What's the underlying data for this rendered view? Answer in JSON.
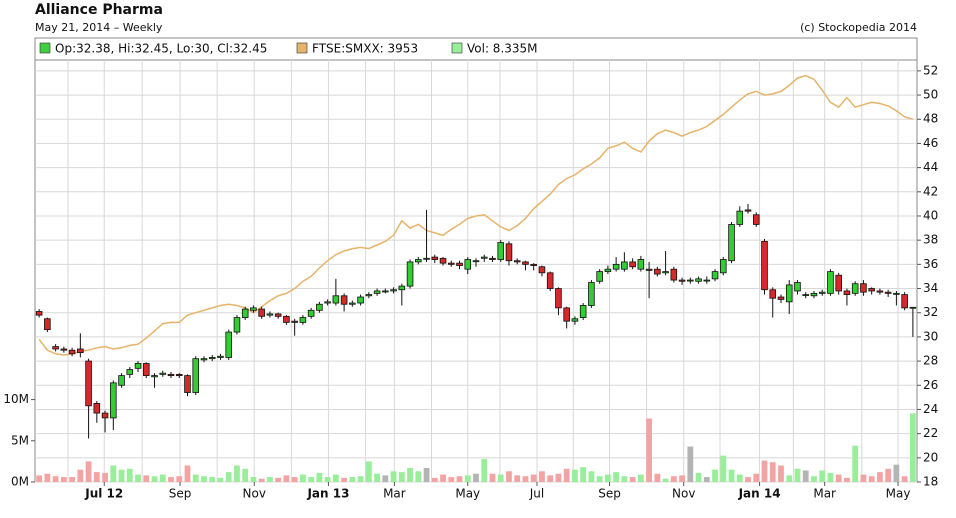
{
  "chart_data": {
    "type": "candlestick",
    "title": "Alliance Pharma",
    "subtitle": "May 21, 2014 – Weekly",
    "copyright": "(c) Stockopedia 2014",
    "xlim": [
      -0.5,
      106.5
    ],
    "xticks": [
      {
        "value": 7.9,
        "label": "Jul 12"
      },
      {
        "value": 17.1,
        "label": "Sep"
      },
      {
        "value": 26.1,
        "label": "Nov"
      },
      {
        "value": 35.1,
        "label": "Jan 13"
      },
      {
        "value": 43.1,
        "label": "Mar"
      },
      {
        "value": 52.0,
        "label": "May"
      },
      {
        "value": 60.4,
        "label": "Jul"
      },
      {
        "value": 69.2,
        "label": "Sep"
      },
      {
        "value": 78.2,
        "label": "Nov"
      },
      {
        "value": 87.4,
        "label": "Jan 14"
      },
      {
        "value": 95.3,
        "label": "Mar"
      },
      {
        "value": 104.2,
        "label": "May"
      }
    ],
    "xticks_minor": [
      3.5,
      12.5,
      21.6,
      30.6,
      39.6,
      47.6,
      55.9,
      64.8,
      73.7,
      82.6,
      91.5,
      99.8
    ],
    "ylim": [
      18,
      52.9
    ],
    "yticks": [
      18,
      20,
      22,
      24,
      26,
      28,
      30,
      32,
      34,
      36,
      38,
      40,
      42,
      44,
      46,
      48,
      50,
      52
    ],
    "y2lim": [
      0,
      51.2
    ],
    "y2ticks": [
      {
        "value": 0,
        "label": "0M"
      },
      {
        "value": 5,
        "label": "5M"
      },
      {
        "value": 10,
        "label": "10M"
      }
    ],
    "grid": true,
    "series": [
      {
        "name": "Op:32.38, Hi:32.45, Lo:30, Cl:32.45",
        "type": "candlestick",
        "color": "#44cc44",
        "color_up": "#33cc33",
        "color_down": "#d42a2a",
        "open": [
          32.1,
          31.5,
          29.2,
          29.0,
          28.9,
          29.0,
          28.0,
          24.5,
          23.7,
          23.3,
          26.0,
          26.9,
          27.4,
          27.8,
          26.7,
          26.9,
          26.9,
          26.9,
          26.8,
          25.4,
          28.1,
          28.2,
          28.3,
          28.3,
          30.4,
          31.6,
          32.2,
          32.3,
          31.8,
          31.9,
          31.7,
          31.3,
          31.2,
          31.7,
          32.2,
          32.8,
          32.8,
          33.4,
          32.7,
          32.8,
          33.4,
          33.6,
          33.8,
          33.8,
          33.9,
          34.2,
          36.2,
          36.5,
          36.6,
          36.5,
          36.1,
          36.1,
          35.6,
          36.3,
          36.5,
          36.5,
          36.4,
          37.7,
          36.3,
          36.2,
          36.0,
          35.8,
          35.3,
          34.0,
          32.4,
          31.3,
          31.6,
          32.6,
          34.6,
          35.4,
          35.6,
          35.6,
          36.2,
          35.6,
          35.6,
          35.6,
          35.3,
          35.6,
          34.7,
          34.7,
          34.6,
          34.7,
          34.8,
          35.3,
          36.3,
          39.3,
          40.5,
          40.1,
          37.9,
          33.9,
          33.3,
          32.9,
          33.8,
          33.5,
          33.4,
          33.6,
          33.6,
          35.1,
          33.8,
          33.6,
          34.4,
          34.0,
          33.8,
          33.7,
          33.6,
          33.5,
          32.38
        ],
        "high": [
          32.3,
          31.6,
          29.4,
          29.2,
          29.1,
          30.3,
          28.2,
          24.7,
          23.9,
          26.4,
          27.0,
          27.5,
          28.0,
          27.9,
          27.0,
          27.2,
          27.1,
          27.0,
          26.9,
          28.4,
          28.4,
          28.5,
          28.6,
          30.6,
          31.8,
          32.5,
          32.6,
          32.5,
          32.1,
          32.0,
          31.8,
          31.5,
          31.8,
          32.4,
          32.9,
          33.1,
          34.8,
          33.6,
          33.0,
          33.5,
          33.7,
          34.0,
          34.0,
          34.1,
          34.4,
          36.4,
          36.6,
          40.5,
          36.8,
          36.6,
          36.3,
          36.3,
          36.6,
          36.5,
          36.8,
          36.7,
          38.0,
          37.9,
          36.5,
          36.3,
          36.1,
          35.9,
          35.4,
          34.1,
          32.5,
          31.7,
          32.8,
          34.7,
          35.6,
          35.9,
          36.6,
          37.0,
          36.5,
          36.7,
          36.2,
          35.8,
          37.1,
          35.8,
          34.9,
          34.9,
          35.0,
          35.0,
          35.6,
          36.6,
          39.5,
          40.8,
          41.0,
          40.3,
          38.1,
          34.1,
          33.5,
          34.7,
          34.7,
          33.7,
          33.8,
          33.9,
          35.6,
          35.3,
          34.0,
          34.6,
          34.7,
          34.1,
          34.0,
          33.9,
          33.8,
          33.7,
          32.45
        ],
        "low": [
          31.6,
          30.4,
          28.8,
          28.7,
          28.4,
          28.3,
          21.6,
          22.9,
          22.1,
          22.3,
          25.8,
          26.6,
          27.1,
          26.6,
          25.8,
          26.7,
          26.6,
          26.6,
          25.1,
          25.2,
          27.9,
          28.0,
          28.1,
          28.1,
          30.2,
          31.4,
          32.0,
          31.5,
          31.6,
          31.5,
          31.0,
          30.1,
          31.0,
          31.5,
          32.0,
          32.6,
          32.6,
          32.1,
          32.5,
          32.6,
          33.2,
          33.4,
          33.6,
          33.6,
          32.6,
          34.0,
          36.0,
          36.2,
          36.1,
          35.9,
          35.8,
          35.6,
          35.2,
          35.8,
          36.2,
          36.2,
          36.2,
          35.9,
          36.0,
          35.5,
          35.5,
          35.0,
          33.8,
          31.8,
          30.7,
          31.0,
          31.4,
          32.4,
          34.4,
          35.2,
          35.4,
          35.4,
          35.6,
          35.4,
          33.2,
          35.0,
          35.1,
          34.5,
          34.3,
          34.4,
          34.4,
          34.4,
          34.6,
          35.1,
          36.1,
          39.1,
          40.2,
          39.1,
          33.5,
          31.6,
          32.8,
          31.9,
          33.5,
          33.2,
          33.2,
          33.4,
          33.4,
          33.5,
          32.6,
          33.4,
          33.4,
          33.5,
          33.5,
          33.3,
          32.6,
          32.2,
          30
        ],
        "close": [
          31.8,
          30.6,
          29.0,
          28.9,
          28.6,
          28.7,
          24.3,
          23.7,
          23.3,
          26.2,
          26.8,
          27.3,
          27.8,
          26.8,
          26.8,
          27.0,
          26.8,
          26.8,
          25.4,
          28.2,
          28.2,
          28.3,
          28.4,
          30.4,
          31.6,
          32.3,
          32.4,
          31.7,
          31.9,
          31.7,
          31.2,
          31.2,
          31.6,
          32.2,
          32.7,
          32.9,
          33.4,
          32.7,
          32.8,
          33.3,
          33.5,
          33.8,
          33.8,
          33.9,
          34.2,
          36.2,
          36.4,
          36.5,
          36.4,
          36.1,
          36.0,
          35.9,
          36.4,
          36.3,
          36.6,
          36.4,
          37.8,
          36.3,
          36.2,
          36.0,
          35.9,
          35.3,
          34.0,
          32.4,
          31.3,
          31.5,
          32.6,
          34.5,
          35.4,
          35.6,
          36.0,
          36.2,
          35.8,
          36.4,
          35.5,
          35.2,
          35.4,
          34.7,
          34.6,
          34.7,
          34.8,
          34.7,
          35.4,
          36.4,
          39.3,
          40.4,
          40.4,
          39.3,
          33.9,
          33.2,
          33.1,
          34.3,
          34.5,
          33.5,
          33.6,
          33.7,
          35.4,
          33.8,
          33.5,
          34.4,
          33.7,
          33.8,
          33.7,
          33.6,
          33.6,
          32.4,
          32.45
        ]
      },
      {
        "name": "FTSE:SMXX: 3953",
        "type": "line",
        "color": "#e6b36a",
        "values": [
          29.8,
          28.9,
          28.6,
          28.5,
          28.6,
          28.8,
          28.9,
          29.1,
          29.2,
          29.0,
          29.1,
          29.3,
          29.4,
          29.9,
          30.5,
          31.1,
          31.2,
          31.2,
          31.8,
          32.0,
          32.2,
          32.4,
          32.6,
          32.7,
          32.6,
          32.4,
          32.0,
          32.5,
          33.0,
          33.4,
          33.6,
          34.0,
          34.6,
          35.0,
          35.7,
          36.3,
          36.8,
          37.1,
          37.3,
          37.4,
          37.3,
          37.6,
          37.9,
          38.4,
          39.6,
          39.0,
          39.3,
          38.8,
          38.6,
          38.4,
          38.9,
          39.3,
          39.8,
          40.0,
          40.1,
          39.6,
          39.1,
          38.8,
          39.2,
          39.8,
          40.6,
          41.2,
          41.8,
          42.6,
          43.1,
          43.4,
          43.9,
          44.3,
          44.8,
          45.6,
          45.8,
          46.1,
          45.6,
          45.3,
          46.2,
          46.8,
          47.1,
          46.9,
          46.6,
          46.9,
          47.1,
          47.4,
          47.9,
          48.4,
          49.0,
          49.6,
          50.1,
          50.3,
          50.0,
          50.1,
          50.3,
          50.8,
          51.4,
          51.6,
          51.3,
          50.4,
          49.4,
          49.0,
          49.8,
          49.0,
          49.2,
          49.4,
          49.3,
          49.1,
          48.7,
          48.2,
          48.0
        ]
      },
      {
        "name": "Vol: 8.335M",
        "type": "bar",
        "axis": "y2",
        "color": "#99ee99",
        "color_up": "#99ee99",
        "color_down": "#f4a3a3",
        "color_flat": "#b4b4b4",
        "values": [
          0.8,
          1.0,
          0.7,
          0.6,
          0.6,
          1.5,
          2.5,
          1.2,
          1.1,
          2.0,
          1.5,
          1.6,
          0.9,
          0.8,
          0.7,
          0.9,
          0.6,
          0.7,
          2.0,
          0.9,
          0.7,
          0.6,
          0.5,
          1.2,
          2.0,
          1.6,
          0.6,
          0.4,
          0.6,
          0.5,
          0.8,
          0.6,
          0.9,
          0.6,
          1.1,
          0.6,
          0.9,
          0.5,
          0.6,
          0.7,
          2.5,
          1.0,
          0.8,
          1.3,
          1.2,
          1.7,
          1.3,
          1.7,
          0.5,
          0.9,
          0.6,
          0.7,
          0.8,
          1.0,
          2.8,
          1.0,
          0.9,
          1.3,
          0.8,
          0.7,
          0.9,
          1.3,
          0.8,
          1.0,
          1.6,
          1.5,
          1.8,
          1.3,
          0.7,
          0.9,
          1.2,
          0.7,
          0.6,
          0.9,
          7.7,
          1.0,
          0.4,
          0.7,
          0.8,
          4.3,
          1.1,
          0.6,
          1.5,
          3.2,
          1.5,
          0.9,
          0.6,
          1.0,
          2.6,
          2.4,
          2.0,
          0.8,
          1.6,
          1.4,
          0.7,
          1.4,
          1.1,
          0.9,
          0.5,
          4.4,
          0.9,
          0.7,
          1.2,
          1.6,
          2.1,
          0.7,
          8.335
        ]
      }
    ]
  }
}
